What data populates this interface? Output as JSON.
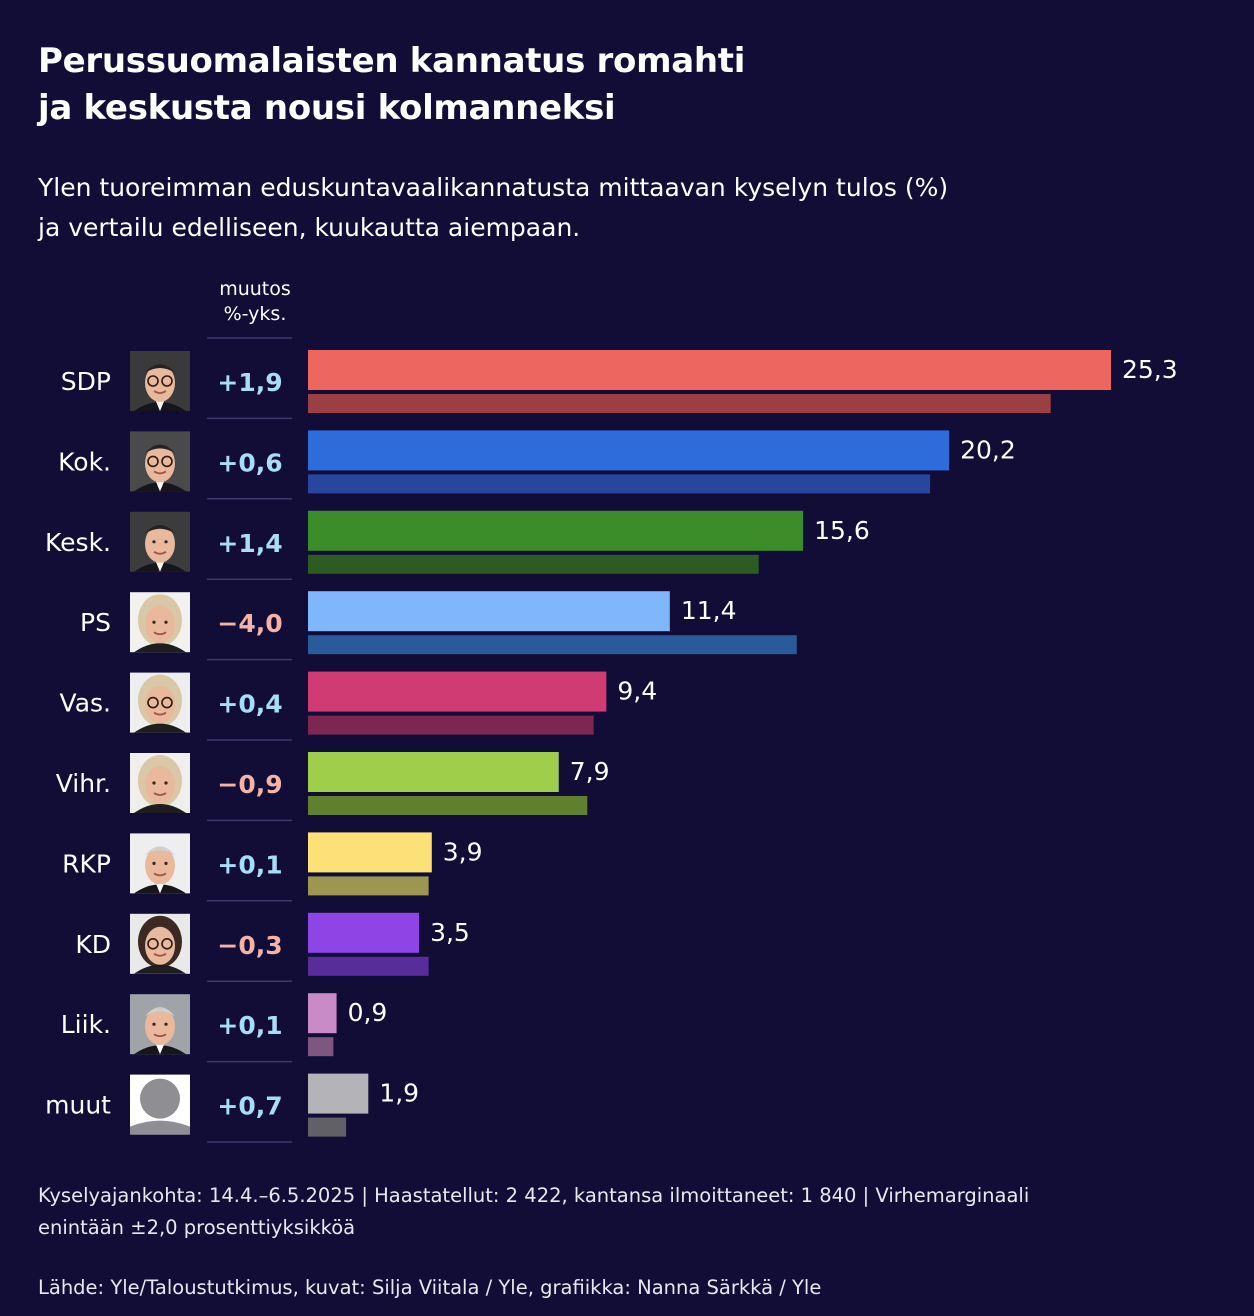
{
  "title_line1": "Perussuomalaisten kannatus romahti",
  "title_line2": "ja keskusta nousi kolmanneksi",
  "subtitle_line1": "Ylen tuoreimman eduskuntavaalikannatusta mittaavan kyselyn tulos (%)",
  "subtitle_line2": "ja vertailu edelliseen, kuukautta aiempaan.",
  "change_header_line1": "muutos",
  "change_header_line2": "%-yks.",
  "footer_note_line1": "Kyselyajankohta: 14.4.–6.5.2025 | Haastatellut: 2 422, kantansa ilmoittaneet: 1 840 | Virhemarginaali",
  "footer_note_line2": "enintään ±2,0 prosenttiyksikköä",
  "footer_source": "Lähde: Yle/Taloustutkimus, kuvat: Silja Viitala / Yle, grafiikka: Nanna Särkkä / Yle",
  "chart_data": {
    "type": "bar",
    "orientation": "horizontal",
    "xlim": [
      0,
      25.3
    ],
    "grid": false,
    "legend": "none",
    "categories": [
      "SDP",
      "Kok.",
      "Kesk.",
      "PS",
      "Vas.",
      "Vihr.",
      "RKP",
      "KD",
      "Liik.",
      "muut"
    ],
    "series": [
      {
        "values": [
          25.3,
          20.2,
          15.6,
          11.4,
          9.4,
          7.9,
          3.9,
          3.5,
          0.9,
          1.9
        ]
      },
      {
        "values": [
          23.4,
          19.6,
          14.2,
          15.4,
          9.0,
          8.8,
          3.8,
          3.8,
          0.8,
          1.2
        ]
      }
    ],
    "value_labels": [
      "25,3",
      "20,2",
      "15,6",
      "11,4",
      "9,4",
      "7,9",
      "3,9",
      "3,5",
      "0,9",
      "1,9"
    ],
    "changes": [
      "+1,9",
      "+0,6",
      "+1,4",
      "−4,0",
      "+0,4",
      "−0,9",
      "+0,1",
      "−0,3",
      "+0,1",
      "+0,7"
    ],
    "change_colors": {
      "positive": "#a9dcf7",
      "negative": "#f4b3a6"
    },
    "current_colors": [
      "#ee6660",
      "#2e6cdc",
      "#3c8c2a",
      "#80b6fb",
      "#d13b74",
      "#9fcf4a",
      "#fbe177",
      "#8d45e6",
      "#c98ac8",
      "#b3b3b8"
    ],
    "previous_colors": [
      "#9c3f45",
      "#28479c",
      "#2c5c22",
      "#2b5a9a",
      "#7c2650",
      "#60802e",
      "#9d9650",
      "#582c9a",
      "#7e567e",
      "#606066"
    ],
    "portraits": [
      "male-portrait-icon",
      "male-portrait-icon",
      "male-portrait-icon",
      "female-portrait-icon",
      "female-portrait-icon",
      "female-portrait-icon",
      "male-portrait-icon",
      "female-portrait-icon",
      "male-portrait-icon",
      "placeholder-avatar-icon"
    ]
  }
}
